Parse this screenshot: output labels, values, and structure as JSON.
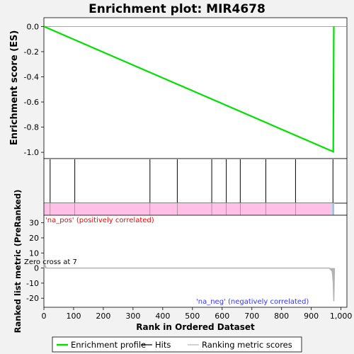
{
  "chart_data": {
    "type": "line",
    "title": "Enrichment plot: MIR4678",
    "xlabel": "Rank in Ordered Dataset",
    "x_ticks": [
      "0",
      "100",
      "200",
      "300",
      "400",
      "500",
      "600",
      "700",
      "800",
      "900",
      "1,000"
    ],
    "xlim": [
      0,
      1020
    ],
    "es_panel": {
      "ylabel": "Enrichment score (ES)",
      "ylim": [
        -1.05,
        0.07
      ],
      "y_ticks": [
        "0.0",
        "-0.2",
        "-0.4",
        "-0.6",
        "-0.8",
        "-1.0"
      ],
      "series": [
        {
          "name": "Enrichment profile",
          "color": "#00e000",
          "x": [
            0,
            974,
            976
          ],
          "y": [
            0.0,
            -0.995,
            0.0
          ]
        }
      ],
      "zero_line": true
    },
    "hits_panel": {
      "hit_ranks": [
        21,
        104,
        357,
        449,
        565,
        614,
        661,
        747,
        847,
        973
      ]
    },
    "ranking_panel": {
      "ylabel": "Ranked list metric (PreRanked)",
      "ylim": [
        -26,
        35
      ],
      "y_ticks": [
        "30",
        "20",
        "10",
        "0",
        "-10",
        "-20"
      ],
      "series": [
        {
          "name": "Ranking metric scores",
          "color": "#b3b3b3",
          "x": [
            0,
            2,
            4,
            6,
            8,
            960,
            965,
            970,
            972,
            974,
            976,
            978
          ],
          "y": [
            6,
            3,
            1.5,
            0.8,
            0,
            0,
            -1,
            -2,
            -5,
            -10,
            -22,
            0
          ]
        }
      ],
      "pos_label": "'na_pos' (positively correlated)",
      "neg_label": "'na_neg' (negatively correlated)",
      "zero_cross_label": "Zero cross at 7",
      "pos_color": "#ff0000",
      "neg_color": "#3333ff"
    },
    "legend": {
      "placement": "bottom",
      "items": [
        {
          "label": "Enrichment profile",
          "color": "#00e000"
        },
        {
          "label": "Hits",
          "color": "#000000"
        },
        {
          "label": "Ranking metric scores",
          "color": "#b3b3b3"
        }
      ]
    }
  }
}
